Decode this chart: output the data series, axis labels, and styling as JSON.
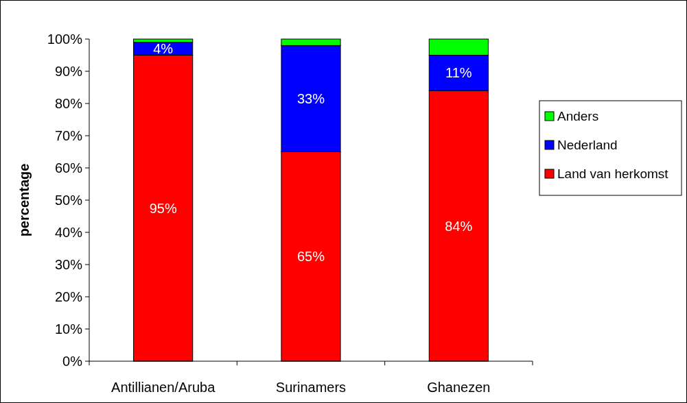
{
  "chart_data": {
    "type": "bar",
    "stacked": true,
    "ylabel": "percentage",
    "categories": [
      "Antillianen/Aruba",
      "Surinamers",
      "Ghanezen"
    ],
    "series": [
      {
        "name": "Land van herkomst",
        "color": "#ff0000",
        "values": [
          95,
          65,
          84
        ],
        "value_labels": [
          "95%",
          "65%",
          "84%"
        ]
      },
      {
        "name": "Nederland",
        "color": "#0000ff",
        "values": [
          4,
          33,
          11
        ],
        "value_labels": [
          "4%",
          "33%",
          "11%"
        ]
      },
      {
        "name": "Anders",
        "color": "#00ff00",
        "values": [
          1,
          2,
          5
        ],
        "value_labels": [
          null,
          null,
          null
        ]
      }
    ],
    "ylim": [
      0,
      100
    ],
    "yticks": [
      {
        "value": 0,
        "label": "0%"
      },
      {
        "value": 10,
        "label": "10%"
      },
      {
        "value": 20,
        "label": "20%"
      },
      {
        "value": 30,
        "label": "30%"
      },
      {
        "value": 40,
        "label": "40%"
      },
      {
        "value": 50,
        "label": "50%"
      },
      {
        "value": 60,
        "label": "60%"
      },
      {
        "value": 70,
        "label": "70%"
      },
      {
        "value": 80,
        "label": "80%"
      },
      {
        "value": 90,
        "label": "90%"
      },
      {
        "value": 100,
        "label": "100%"
      }
    ],
    "grid": false,
    "legend": "right"
  }
}
